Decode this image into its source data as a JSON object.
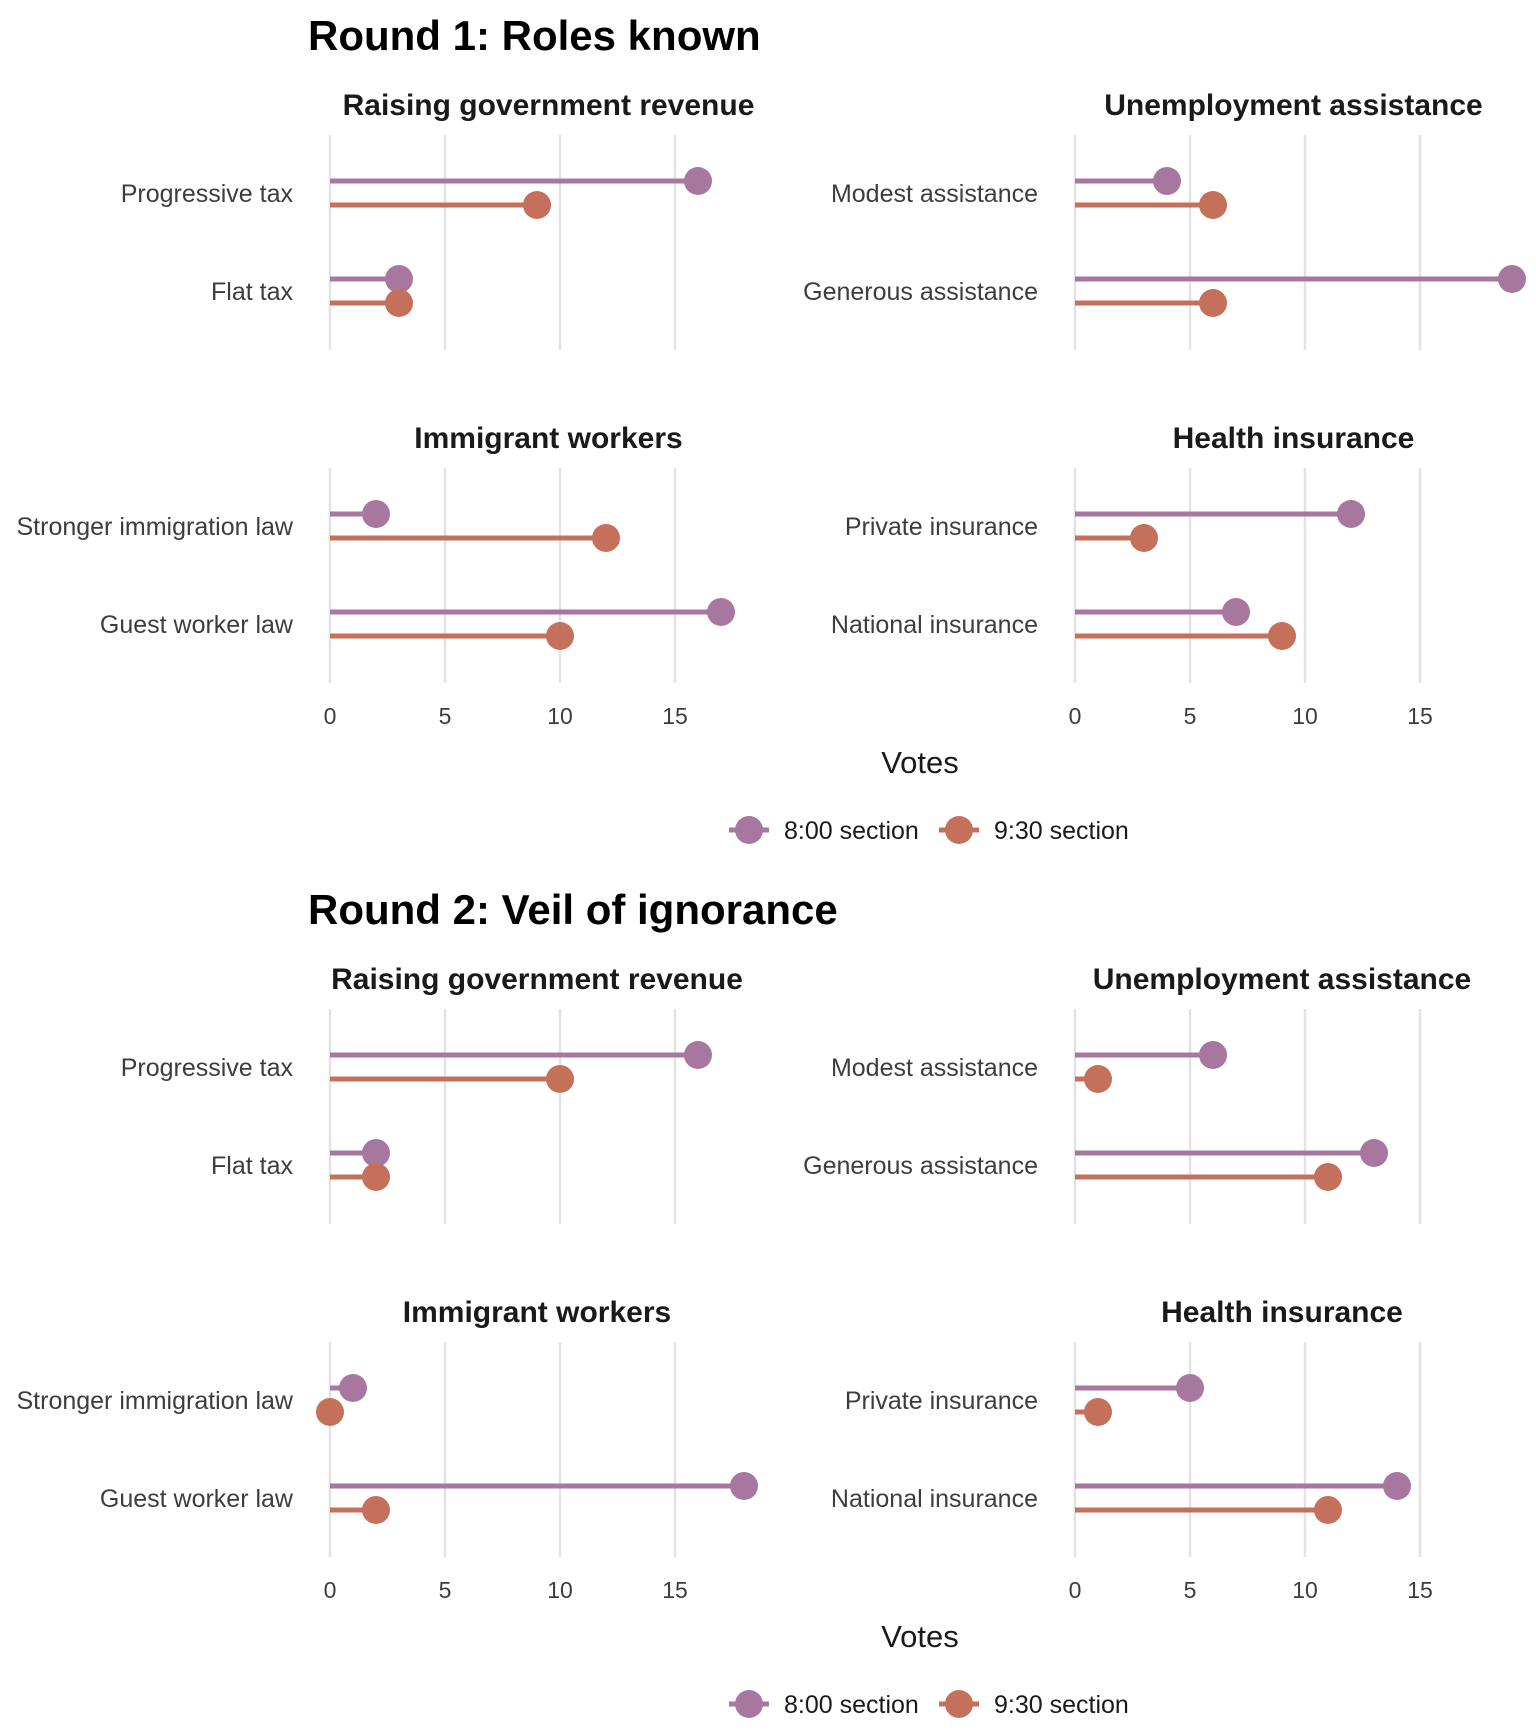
{
  "colors": {
    "s800": "#a7779f",
    "s930": "#c5705a",
    "grid": "#e3e3e3"
  },
  "chart_data": [
    {
      "type": "lollipop",
      "title": "Round 1: Roles known",
      "xlabel": "Votes",
      "legend": {
        "placement": "bottom",
        "entries": [
          "8:00 section",
          "9:30 section"
        ]
      },
      "grid": true,
      "facets": [
        {
          "title": "Raising government revenue",
          "xlim": [
            0,
            19
          ],
          "ticks": [
            0,
            5,
            10,
            15
          ],
          "categories": [
            "Progressive tax",
            "Flat tax"
          ],
          "series": [
            {
              "name": "8:00 section",
              "values": [
                16,
                3
              ]
            },
            {
              "name": "9:30 section",
              "values": [
                9,
                3
              ]
            }
          ]
        },
        {
          "title": "Unemployment assistance",
          "xlim": [
            0,
            19
          ],
          "ticks": [
            0,
            5,
            10,
            15
          ],
          "categories": [
            "Modest assistance",
            "Generous assistance"
          ],
          "series": [
            {
              "name": "8:00 section",
              "values": [
                4,
                19
              ]
            },
            {
              "name": "9:30 section",
              "values": [
                6,
                6
              ]
            }
          ]
        },
        {
          "title": "Immigrant workers",
          "xlim": [
            0,
            19
          ],
          "ticks": [
            0,
            5,
            10,
            15
          ],
          "categories": [
            "Stronger immigration law",
            "Guest worker law"
          ],
          "series": [
            {
              "name": "8:00 section",
              "values": [
                2,
                17
              ]
            },
            {
              "name": "9:30 section",
              "values": [
                12,
                10
              ]
            }
          ]
        },
        {
          "title": "Health insurance",
          "xlim": [
            0,
            19
          ],
          "ticks": [
            0,
            5,
            10,
            15
          ],
          "categories": [
            "Private insurance",
            "National insurance"
          ],
          "series": [
            {
              "name": "8:00 section",
              "values": [
                12,
                7
              ]
            },
            {
              "name": "9:30 section",
              "values": [
                3,
                9
              ]
            }
          ]
        }
      ]
    },
    {
      "type": "lollipop",
      "title": "Round 2: Veil of ignorance",
      "xlabel": "Votes",
      "legend": {
        "placement": "bottom",
        "entries": [
          "8:00 section",
          "9:30 section"
        ]
      },
      "grid": true,
      "facets": [
        {
          "title": "Raising government revenue",
          "xlim": [
            0,
            18
          ],
          "ticks": [
            0,
            5,
            10,
            15
          ],
          "categories": [
            "Progressive tax",
            "Flat tax"
          ],
          "series": [
            {
              "name": "8:00 section",
              "values": [
                16,
                2
              ]
            },
            {
              "name": "9:30 section",
              "values": [
                10,
                2
              ]
            }
          ]
        },
        {
          "title": "Unemployment assistance",
          "xlim": [
            0,
            18
          ],
          "ticks": [
            0,
            5,
            10,
            15
          ],
          "categories": [
            "Modest assistance",
            "Generous assistance"
          ],
          "series": [
            {
              "name": "8:00 section",
              "values": [
                6,
                13
              ]
            },
            {
              "name": "9:30 section",
              "values": [
                1,
                11
              ]
            }
          ]
        },
        {
          "title": "Immigrant workers",
          "xlim": [
            0,
            18
          ],
          "ticks": [
            0,
            5,
            10,
            15
          ],
          "categories": [
            "Stronger immigration law",
            "Guest worker law"
          ],
          "series": [
            {
              "name": "8:00 section",
              "values": [
                1,
                18
              ]
            },
            {
              "name": "9:30 section",
              "values": [
                0,
                2
              ]
            }
          ]
        },
        {
          "title": "Health insurance",
          "xlim": [
            0,
            18
          ],
          "ticks": [
            0,
            5,
            10,
            15
          ],
          "categories": [
            "Private insurance",
            "National insurance"
          ],
          "series": [
            {
              "name": "8:00 section",
              "values": [
                5,
                14
              ]
            },
            {
              "name": "9:30 section",
              "values": [
                1,
                11
              ]
            }
          ]
        }
      ]
    }
  ]
}
